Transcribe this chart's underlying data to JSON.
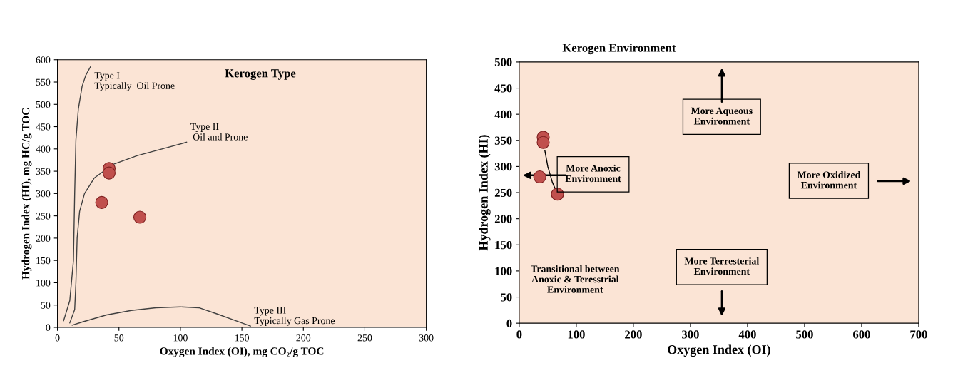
{
  "chart_data": [
    {
      "type": "scatter",
      "title": "Kerogen Type",
      "xlabel": "Oxygen Index (OI), mg CO₂/g TOC",
      "ylabel": "Hydrogen Index (HI), mg HC/g TOC",
      "xlim": [
        0,
        300
      ],
      "ylim": [
        0,
        600
      ],
      "xticks": [
        0,
        50,
        100,
        150,
        200,
        250,
        300
      ],
      "yticks": [
        0,
        50,
        100,
        150,
        200,
        250,
        300,
        350,
        400,
        450,
        500,
        550,
        600
      ],
      "grid": false,
      "x": [
        42,
        42,
        36,
        67
      ],
      "series": [
        {
          "marker": "circle",
          "color": "#c0504d",
          "values": [
            356,
            346,
            280,
            247
          ]
        },
        {
          "type": "line",
          "marker": "none",
          "color": "#404040",
          "x": [
            5,
            10,
            13,
            14,
            15,
            17,
            20,
            23,
            27
          ],
          "values": [
            15,
            60,
            150,
            300,
            420,
            490,
            540,
            565,
            585
          ]
        },
        {
          "type": "line",
          "marker": "none",
          "color": "#404040",
          "x": [
            10,
            14,
            15,
            16,
            18,
            22,
            30,
            45,
            65,
            85,
            105
          ],
          "values": [
            10,
            40,
            100,
            200,
            260,
            300,
            335,
            365,
            385,
            400,
            415
          ]
        },
        {
          "type": "line",
          "marker": "none",
          "color": "#404040",
          "x": [
            12,
            20,
            40,
            60,
            80,
            100,
            115,
            130,
            145,
            157
          ],
          "values": [
            5,
            12,
            28,
            38,
            44,
            46,
            44,
            30,
            15,
            3
          ]
        }
      ],
      "annotations": [
        {
          "text": "Type I\nTypically  Oil Prone",
          "x": 27,
          "y": 585
        },
        {
          "text": "Type II\n Oil and Prone",
          "x": 105,
          "y": 415
        },
        {
          "text": "Type III\nTypically Gas Prone",
          "x": 157,
          "y": 3
        }
      ]
    },
    {
      "type": "scatter",
      "title": "Kerogen Environment",
      "xlabel": "Oxygen Index (OI)",
      "ylabel": "Hydrogen Index (HI)",
      "xlim": [
        0,
        700
      ],
      "ylim": [
        0,
        500
      ],
      "xticks": [
        0,
        100,
        200,
        300,
        400,
        500,
        600,
        700
      ],
      "yticks": [
        0,
        50,
        100,
        150,
        200,
        250,
        300,
        350,
        400,
        450,
        500
      ],
      "grid": false,
      "x": [
        42,
        42,
        36,
        67
      ],
      "series": [
        {
          "marker": "circle",
          "color": "#c0504d",
          "values": [
            356,
            346,
            280,
            247
          ]
        },
        {
          "type": "line",
          "marker": "none",
          "color": "#000000",
          "x": [
            45,
            50,
            58,
            67
          ],
          "values": [
            330,
            300,
            270,
            247
          ]
        }
      ],
      "annotations": [
        "More Aqueous\nEnvironment",
        "More Anoxic\nEnvironment",
        "More Oxidized\nEnvironment",
        "More Terresterial\nEnvironment",
        "Transitional between\nAnoxic & Teresstrial\nEnvironment"
      ]
    }
  ]
}
